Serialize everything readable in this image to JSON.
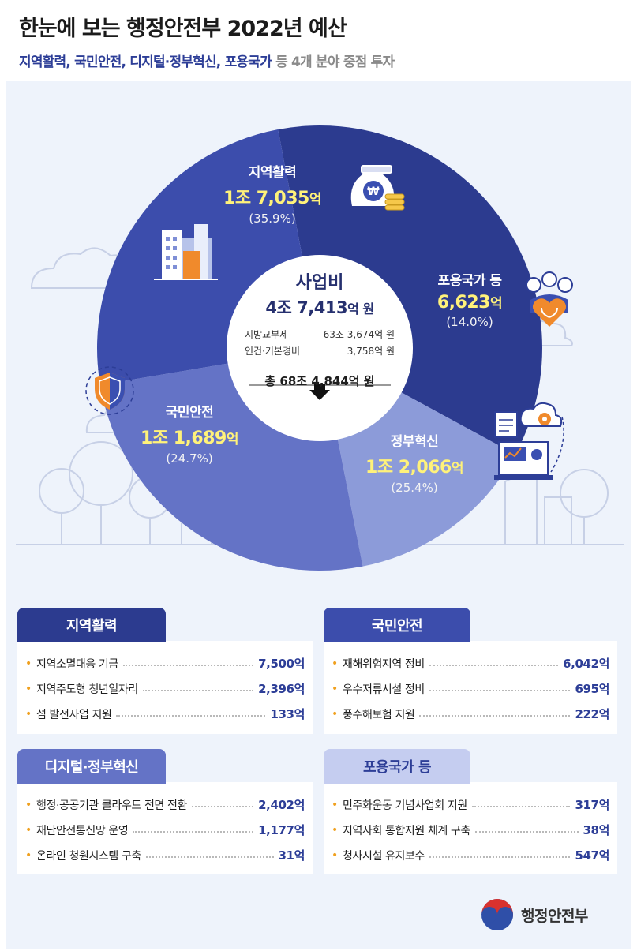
{
  "header": {
    "title": "한눈에 보는 행정안전부 2022년 예산",
    "subtitle_highlight": "지역활력, 국민안전, 디지털·정부혁신, 포용국가",
    "subtitle_rest": " 등 4개 분야 중점 투자"
  },
  "center": {
    "title": "사업비",
    "total_number": "4조 7,413",
    "total_unit": "억 원",
    "line1_label": "지방교부세",
    "line1_value": "63조 3,674억 원",
    "line2_label": "인건·기본경비",
    "line2_value": "3,758억 원",
    "sum": "총 68조 4,844억 원"
  },
  "segments": [
    {
      "key": "jiyeok",
      "name": "지역활력",
      "amount_number": "1조 7,035",
      "amount_unit": "억",
      "pct": "(35.9%)"
    },
    {
      "key": "poyong",
      "name": "포용국가 등",
      "amount_number": "6,623",
      "amount_unit": "억",
      "pct": "(14.0%)"
    },
    {
      "key": "jeongbu",
      "name": "정부혁신",
      "amount_number": "1조 2,066",
      "amount_unit": "억",
      "pct": "(25.4%)"
    },
    {
      "key": "gukmin",
      "name": "국민안전",
      "amount_number": "1조 1,689",
      "amount_unit": "억",
      "pct": "(24.7%)"
    }
  ],
  "colors": {
    "jiyeok": "#2c3b8f",
    "poyong": "#8c9bd9",
    "jeongbu": "#6473c6",
    "gukmin": "#3c4dac",
    "navy": "#2d3e97",
    "lavender": "#c5cdf0",
    "bullet": "#f0a01e"
  },
  "chart_data": {
    "type": "pie",
    "title": "사업비 4조 7,413억 원",
    "categories": [
      "지역활력",
      "포용국가 등",
      "정부혁신",
      "국민안전"
    ],
    "values": [
      17035,
      6623,
      12066,
      11689
    ],
    "value_unit": "억",
    "percentages": [
      35.9,
      14.0,
      25.4,
      24.7
    ]
  },
  "boxes": {
    "jiyeok": {
      "title": "지역활력",
      "items": [
        {
          "label": "지역소멸대응 기금",
          "value": "7,500억"
        },
        {
          "label": "지역주도형 청년일자리",
          "value": "2,396억"
        },
        {
          "label": "섬 발전사업 지원",
          "value": "133억"
        }
      ]
    },
    "gukmin": {
      "title": "국민안전",
      "items": [
        {
          "label": "재해위험지역 정비",
          "value": "6,042억"
        },
        {
          "label": "우수저류시설 정비",
          "value": "695억"
        },
        {
          "label": "풍수해보험 지원",
          "value": "222억"
        }
      ]
    },
    "digital": {
      "title": "디지털·정부혁신",
      "items": [
        {
          "label": "행정·공공기관 클라우드 전면 전환",
          "value": "2,402억"
        },
        {
          "label": "재난안전통신망 운영",
          "value": "1,177억"
        },
        {
          "label": "온라인 청원시스템 구축",
          "value": "31억"
        }
      ]
    },
    "poyong": {
      "title": "포용국가 등",
      "items": [
        {
          "label": "민주화운동 기념사업회 지원",
          "value": "317억"
        },
        {
          "label": "지역사회 통합지원 체계 구축",
          "value": "38억"
        },
        {
          "label": "청사시설 유지보수",
          "value": "547억"
        }
      ]
    }
  },
  "logo": {
    "text": "행정안전부"
  }
}
